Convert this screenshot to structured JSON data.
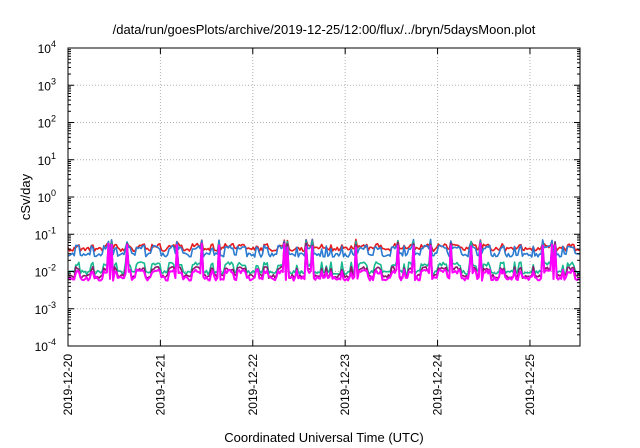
{
  "chart_data": {
    "type": "line",
    "title": "/data/run/goesPlots/archive/2019-12-25/12:00/flux/../bryn/5daysMoon.plot",
    "xlabel": "Coordinated Universal Time (UTC)",
    "ylabel": "cSv/day",
    "yscale": "log",
    "ylim": [
      0.0001,
      10000
    ],
    "xlim": [
      "2019-12-20",
      "2019-12-25T13:00"
    ],
    "grid": true,
    "y_ticks": [
      {
        "base": "10",
        "exp": "-4"
      },
      {
        "base": "10",
        "exp": "-3"
      },
      {
        "base": "10",
        "exp": "-2"
      },
      {
        "base": "10",
        "exp": "-1"
      },
      {
        "base": "10",
        "exp": "0"
      },
      {
        "base": "10",
        "exp": "1"
      },
      {
        "base": "10",
        "exp": "2"
      },
      {
        "base": "10",
        "exp": "3"
      },
      {
        "base": "10",
        "exp": "4"
      }
    ],
    "x_ticks": [
      "2019-12-20",
      "2019-12-21",
      "2019-12-22",
      "2019-12-23",
      "2019-12-24",
      "2019-12-25"
    ],
    "series": [
      {
        "color": "#e41a1c",
        "base": 0.05,
        "low": 0.04,
        "spike": 0.065
      },
      {
        "color": "#2a7bd1",
        "base": 0.045,
        "low": 0.028,
        "spike": 0.065
      },
      {
        "color": "#17b890",
        "base": 0.016,
        "low": 0.0095,
        "spike": 0.06
      },
      {
        "color": "#8b1a6b",
        "base": 0.012,
        "low": 0.0075,
        "spike": 0.055
      },
      {
        "color": "#ff00ff",
        "base": 0.01,
        "low": 0.0065,
        "spike": 0.05
      }
    ]
  }
}
